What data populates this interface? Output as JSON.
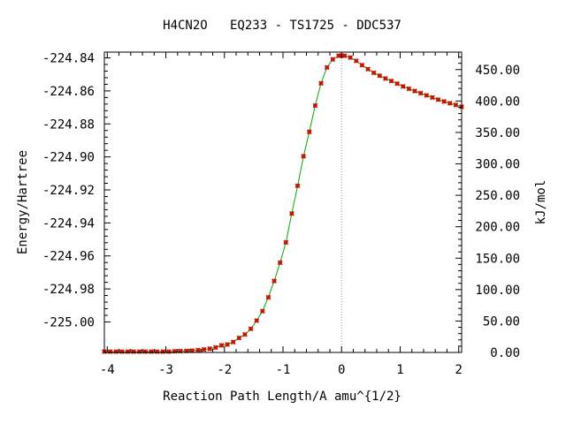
{
  "chart_data": {
    "type": "line",
    "title": "H4CN2O   EQ233 - TS1725 - DDC537",
    "xlabel": "Reaction Path Length/A amu^{1/2}",
    "ylabel": "Energy/Hartree",
    "y2label": "kJ/mol",
    "xlim": [
      -4.05,
      2.05
    ],
    "ylim": [
      -225.0185,
      -224.8365
    ],
    "y2lim": [
      0.0,
      477.8
    ],
    "x_ticks": [
      -4,
      -3,
      -2,
      -1,
      0,
      1,
      2
    ],
    "x_tick_labels": [
      "-4",
      "-3",
      "-2",
      "-1",
      "0",
      "1",
      "2"
    ],
    "y_ticks": [
      -224.84,
      -224.86,
      -224.88,
      -224.9,
      -224.92,
      -224.94,
      -224.96,
      -224.98,
      -225.0
    ],
    "y_tick_labels": [
      "-224.84",
      "-224.86",
      "-224.88",
      "-224.90",
      "-224.92",
      "-224.94",
      "-224.96",
      "-224.98",
      "-225.00"
    ],
    "y2_ticks": [
      0,
      50,
      100,
      150,
      200,
      250,
      300,
      350,
      400,
      450
    ],
    "y2_tick_labels": [
      "0.00",
      "50.00",
      "100.00",
      "150.00",
      "200.00",
      "250.00",
      "300.00",
      "350.00",
      "400.00",
      "450.00"
    ],
    "ts_marker_x": 0.0,
    "grid": false,
    "colors": {
      "line": "#00aa00",
      "marker": "#cc1100",
      "axis": "#000000",
      "ts_line": "#999999"
    },
    "series": [
      {
        "x": [
          -4.05,
          -3.95,
          -3.85,
          -3.75,
          -3.65,
          -3.55,
          -3.45,
          -3.35,
          -3.25,
          -3.15,
          -3.05,
          -2.95,
          -2.85,
          -2.75,
          -2.65,
          -2.55,
          -2.45,
          -2.35,
          -2.25,
          -2.15,
          -2.05,
          -1.95,
          -1.85,
          -1.75,
          -1.65,
          -1.55,
          -1.45,
          -1.35,
          -1.25,
          -1.15,
          -1.05,
          -0.95,
          -0.85,
          -0.75,
          -0.65,
          -0.55,
          -0.45,
          -0.35,
          -0.25,
          -0.15,
          -0.05,
          0.0,
          0.05,
          0.15,
          0.25,
          0.35,
          0.45,
          0.55,
          0.65,
          0.75,
          0.85,
          0.95,
          1.05,
          1.15,
          1.25,
          1.35,
          1.45,
          1.55,
          1.65,
          1.75,
          1.85,
          1.95,
          2.05
        ],
        "y": [
          -225.018,
          -225.018,
          -225.018,
          -225.018,
          -225.018,
          -225.018,
          -225.018,
          -225.018,
          -225.018,
          -225.018,
          -225.018,
          -225.018,
          -225.0178,
          -225.0177,
          -225.0176,
          -225.0174,
          -225.0171,
          -225.0167,
          -225.0162,
          -225.0155,
          -225.0142,
          -225.0137,
          -225.0122,
          -225.0097,
          -225.0076,
          -225.0042,
          -224.9992,
          -224.9935,
          -224.9851,
          -224.9752,
          -224.9641,
          -224.9518,
          -224.9343,
          -224.9175,
          -224.8996,
          -224.8848,
          -224.8689,
          -224.8554,
          -224.8458,
          -224.8409,
          -224.8387,
          -224.8386,
          -224.8387,
          -224.8398,
          -224.8418,
          -224.8444,
          -224.8468,
          -224.849,
          -224.8508,
          -224.8525,
          -224.854,
          -224.8556,
          -224.8573,
          -224.8587,
          -224.8601,
          -224.8614,
          -224.8627,
          -224.864,
          -224.8653,
          -224.8664,
          -224.8675,
          -224.8685,
          -224.8696
        ]
      }
    ]
  }
}
